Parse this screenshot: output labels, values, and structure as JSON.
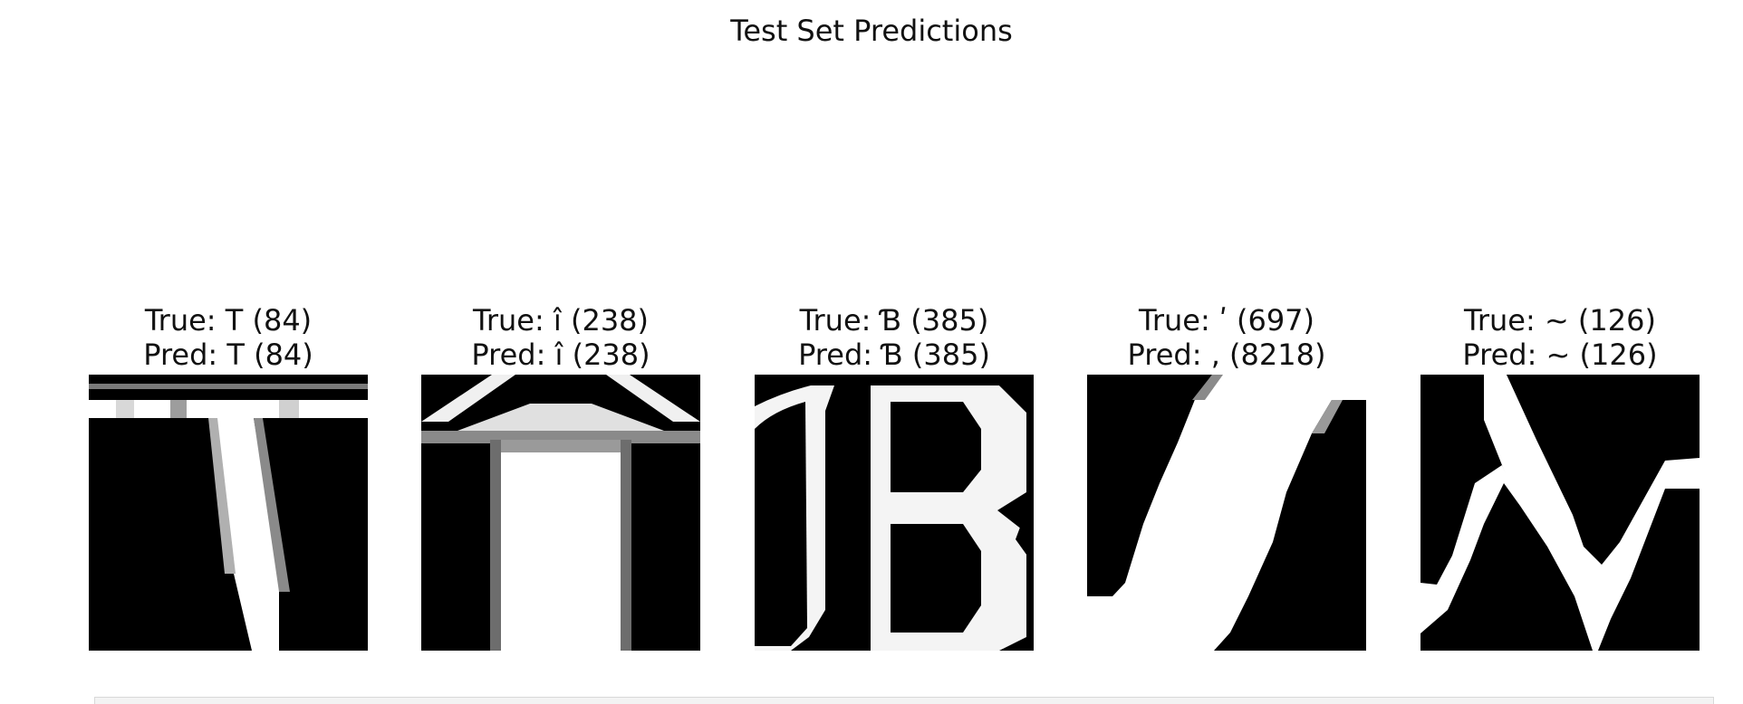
{
  "figure": {
    "title": "Test Set Predictions"
  },
  "panels": [
    {
      "true_label": "True: T (84)",
      "pred_label": "Pred: T (84)",
      "glyph": "T"
    },
    {
      "true_label": "True: î (238)",
      "pred_label": "Pred: î (238)",
      "glyph": "î"
    },
    {
      "true_label": "True: Ɓ (385)",
      "pred_label": "Pred: Ɓ (385)",
      "glyph": "Ɓ"
    },
    {
      "true_label": "True: ʹ (697)",
      "pred_label": "Pred: , (8218)",
      "glyph": "ʹ"
    },
    {
      "true_label": "True: ~ (126)",
      "pred_label": "Pred: ~ (126)",
      "glyph": "~"
    }
  ]
}
